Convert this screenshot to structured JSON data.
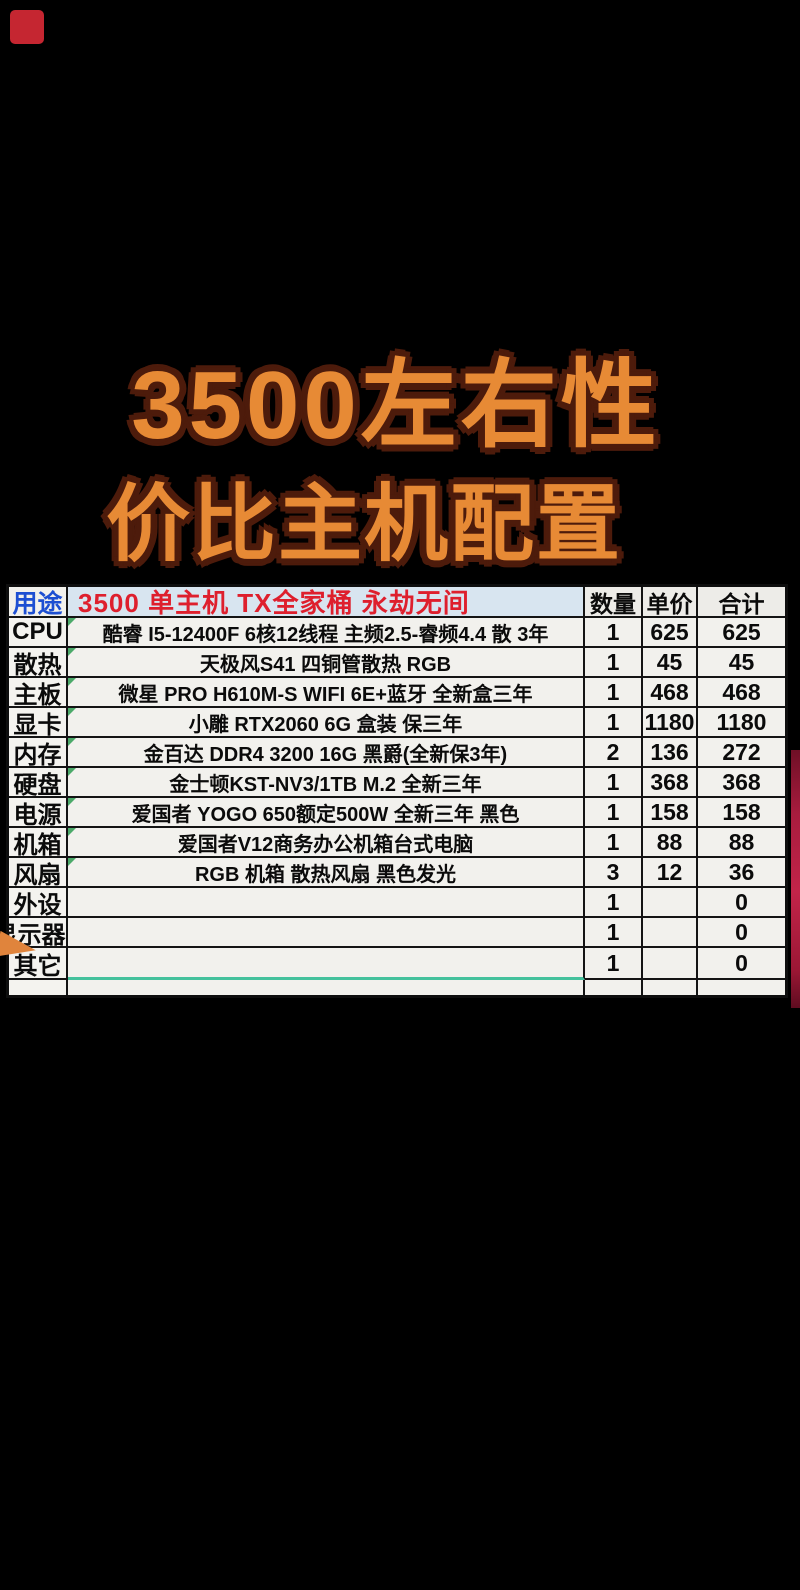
{
  "title": {
    "line1": "3500左右性",
    "line2": "价比主机配置"
  },
  "table": {
    "header": {
      "category": "用途",
      "description": "3500 单主机 TX全家桶  永劫无间",
      "qty": "数量",
      "unit_price": "单价",
      "total": "合计"
    },
    "rows": [
      {
        "category": "CPU",
        "description": "酷睿 I5-12400F 6核12线程 主频2.5-睿频4.4 散 3年",
        "qty": "1",
        "unit_price": "625",
        "total": "625"
      },
      {
        "category": "散热",
        "description": "天极风S41 四铜管散热 RGB",
        "qty": "1",
        "unit_price": "45",
        "total": "45"
      },
      {
        "category": "主板",
        "description": "微星 PRO H610M-S WIFI 6E+蓝牙  全新盒三年",
        "qty": "1",
        "unit_price": "468",
        "total": "468"
      },
      {
        "category": "显卡",
        "description": "小雕 RTX2060 6G 盒装 保三年",
        "qty": "1",
        "unit_price": "1180",
        "total": "1180"
      },
      {
        "category": "内存",
        "description": "金百达 DDR4 3200 16G 黑爵(全新保3年)",
        "qty": "2",
        "unit_price": "136",
        "total": "272"
      },
      {
        "category": "硬盘",
        "description": "金士顿KST-NV3/1TB M.2  全新三年",
        "qty": "1",
        "unit_price": "368",
        "total": "368"
      },
      {
        "category": "电源",
        "description": "爱国者 YOGO 650额定500W  全新三年 黑色",
        "qty": "1",
        "unit_price": "158",
        "total": "158"
      },
      {
        "category": "机箱",
        "description": "爱国者V12商务办公机箱台式电脑",
        "qty": "1",
        "unit_price": "88",
        "total": "88"
      },
      {
        "category": "风扇",
        "description": "RGB  机箱 散热风扇  黑色发光",
        "qty": "3",
        "unit_price": "12",
        "total": "36"
      },
      {
        "category": "外设",
        "description": "",
        "qty": "1",
        "unit_price": "",
        "total": "0"
      },
      {
        "category": "显示器",
        "description": "",
        "qty": "1",
        "unit_price": "",
        "total": "0"
      },
      {
        "category": "其它",
        "description": "",
        "qty": "1",
        "unit_price": "",
        "total": "0"
      }
    ]
  },
  "colors": {
    "background": "#000000",
    "title_fill": "#e78a35",
    "title_outline": "#4d1b0b",
    "header_category_text": "#1d4fd2",
    "header_description_text": "#de1f2d",
    "header_description_bg": "#d8e5f0",
    "cell_bg": "#f2f1ed",
    "grid_border": "#141414",
    "teal_underline": "#44c19c",
    "cell_corner_mark": "#2f9e52",
    "corner_badge": "#c52631",
    "side_bar": "#a81c3e",
    "pointer": "#e0843c"
  }
}
